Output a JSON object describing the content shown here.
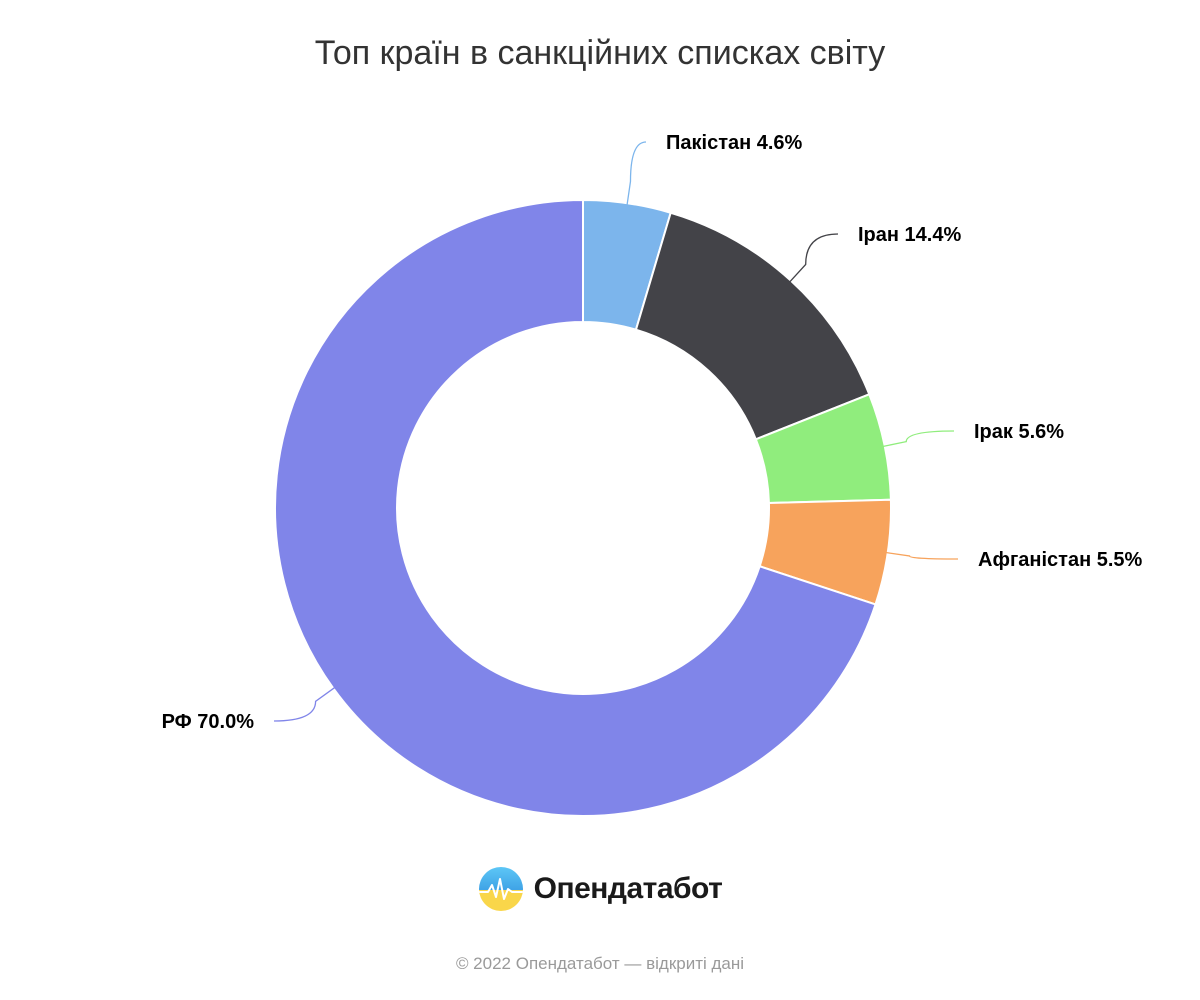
{
  "chart_data": {
    "type": "pie",
    "variant": "donut",
    "title": "Топ країн в санкційних списках світу",
    "unit": "%",
    "slices": [
      {
        "label": "Пакістан",
        "value": 4.6,
        "color": "#7cb5ec"
      },
      {
        "label": "Іран",
        "value": 14.4,
        "color": "#434348"
      },
      {
        "label": "Ірак",
        "value": 5.6,
        "color": "#90ed7d"
      },
      {
        "label": "Афганістан",
        "value": 5.5,
        "color": "#f7a35c"
      },
      {
        "label": "РФ",
        "value": 70.0,
        "color": "#8085e9"
      }
    ]
  },
  "brand": {
    "name": "Опендатабот",
    "logo_icon": "opendatabot-logo-icon"
  },
  "footer": {
    "text": "© 2022 Опендатабот — відкриті дані"
  }
}
